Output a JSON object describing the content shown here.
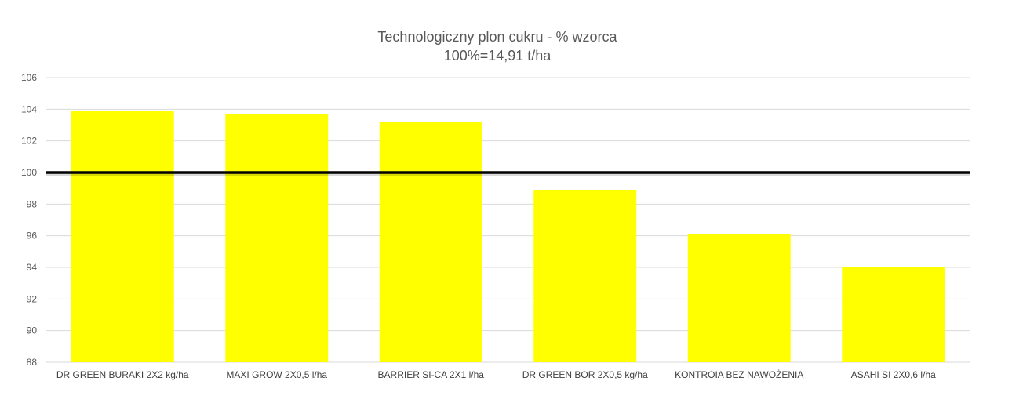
{
  "chart_data": {
    "type": "bar",
    "title": "Technologiczny plon cukru - % wzorca",
    "subtitle": "100%=14,91 t/ha",
    "categories": [
      "DR GREEN BURAKI 2X2 kg/ha",
      "MAXI GROW 2X0,5 l/ha",
      "BARRIER SI-CA 2X1 l/ha",
      "DR GREEN BOR 2X0,5 kg/ha",
      "KONTROIA BEZ NAWOŻENIA",
      "ASAHI SI 2X0,6 l/ha"
    ],
    "values": [
      103.9,
      103.7,
      103.2,
      98.9,
      96.1,
      94.0
    ],
    "ylim": [
      88,
      106
    ],
    "yticks": [
      88,
      90,
      92,
      94,
      96,
      98,
      100,
      102,
      104,
      106
    ],
    "reference_line": 100,
    "grid": true,
    "legend": "none",
    "colors": {
      "bar": "#FFFF00",
      "reference": "#000000",
      "grid": "#D9D9D9",
      "text": "#595959"
    }
  }
}
